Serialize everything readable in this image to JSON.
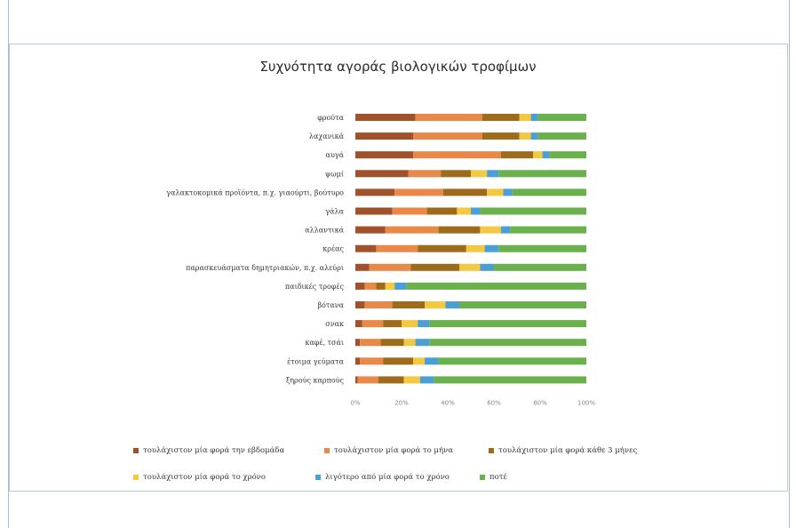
{
  "chart_data": {
    "type": "bar",
    "orientation": "horizontal-stacked-100",
    "title": "Συχνότητα αγοράς βιολογικών τροφίμων",
    "categories": [
      "φρούτα",
      "λαχανικά",
      "αυγά",
      "ψωμί",
      "γαλακτοκομικά προϊόντα, π.χ. γιαούρτι, βούτυρο",
      "γάλα",
      "αλλαντικά",
      "κρέας",
      "παρασκευάσματα δημητριακών, π.χ. αλεύρι",
      "παιδικές τροφές",
      "βότανα",
      "σνακ",
      "καφέ, τσάι",
      "έτοιμα γεύματα",
      "ξηρούς καρπούς"
    ],
    "xticks": [
      "0%",
      "20%",
      "40%",
      "60%",
      "80%",
      "100%"
    ],
    "xlim": [
      0,
      100
    ],
    "legend_position": "bottom",
    "series": [
      {
        "name": "τουλάχιστον μία φορά την εβδομάδα",
        "color": "#a0522d",
        "values": [
          26,
          25,
          25,
          23,
          17,
          16,
          13,
          9,
          6,
          4,
          4,
          3,
          2,
          2,
          1
        ]
      },
      {
        "name": "τουλάχιστον μία φορά το μήνα",
        "color": "#e8894a",
        "values": [
          29,
          30,
          38,
          14,
          21,
          15,
          23,
          18,
          18,
          5,
          12,
          9,
          9,
          10,
          9
        ]
      },
      {
        "name": "τουλάχιστον μία φορά κάθε 3 μήνες",
        "color": "#9c6b1c",
        "values": [
          16,
          16,
          14,
          13,
          19,
          13,
          18,
          21,
          21,
          4,
          14,
          8,
          10,
          13,
          11
        ]
      },
      {
        "name": "τουλάχιστον μία φορά το χρόνο",
        "color": "#f5c842",
        "values": [
          5,
          5,
          4,
          7,
          7,
          6,
          9,
          8,
          9,
          4,
          9,
          7,
          5,
          5,
          7
        ]
      },
      {
        "name": "λιγότερο από μία φορά το χρόνο",
        "color": "#4a9fd4",
        "values": [
          3,
          3,
          3,
          5,
          4,
          4,
          4,
          6,
          6,
          5,
          6,
          5,
          6,
          6,
          6
        ]
      },
      {
        "name": "ποτέ",
        "color": "#6ab04c",
        "values": [
          21,
          21,
          16,
          38,
          32,
          46,
          33,
          38,
          40,
          78,
          55,
          68,
          68,
          64,
          66
        ]
      }
    ]
  }
}
